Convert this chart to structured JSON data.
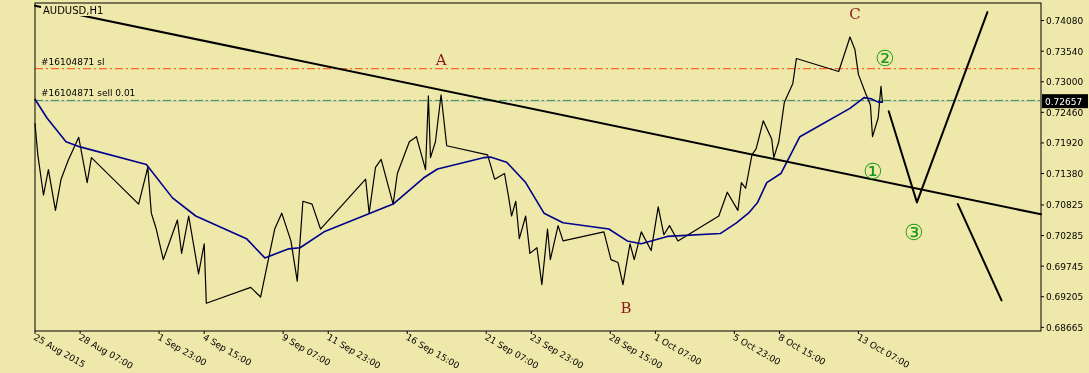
{
  "chart_data": {
    "type": "line",
    "title": "AUDUSD,H1",
    "xlim": [
      "2015-08-25T15:00",
      "2015-10-24T02:00"
    ],
    "ylim": [
      0.686,
      0.7439
    ],
    "xticks": [
      {
        "value": "2015-08-25T15:00",
        "label": "25 Aug 2015"
      },
      {
        "value": "2015-08-28T07:00",
        "label": "28 Aug 07:00"
      },
      {
        "value": "2015-09-01T23:00",
        "label": "1 Sep 23:00"
      },
      {
        "value": "2015-09-04T15:00",
        "label": "4 Sep 15:00"
      },
      {
        "value": "2015-09-09T07:00",
        "label": "9 Sep 07:00"
      },
      {
        "value": "2015-09-11T23:00",
        "label": "11 Sep 23:00"
      },
      {
        "value": "2015-09-16T15:00",
        "label": "16 Sep 15:00"
      },
      {
        "value": "2015-09-21T07:00",
        "label": "21 Sep 07:00"
      },
      {
        "value": "2015-09-23T23:00",
        "label": "23 Sep 23:00"
      },
      {
        "value": "2015-09-28T15:00",
        "label": "28 Sep 15:00"
      },
      {
        "value": "2015-10-01T07:00",
        "label": "1 Oct 07:00"
      },
      {
        "value": "2015-10-05T23:00",
        "label": "5 Oct 23:00"
      },
      {
        "value": "2015-10-08T15:00",
        "label": "8 Oct 15:00"
      },
      {
        "value": "2015-10-13T07:00",
        "label": "13 Oct 07:00"
      }
    ],
    "yticks": [
      {
        "value": 0.7408,
        "label": "0.74080"
      },
      {
        "value": 0.7354,
        "label": "0.73540"
      },
      {
        "value": 0.73,
        "label": "0.73000"
      },
      {
        "value": 0.7246,
        "label": "0.72460"
      },
      {
        "value": 0.7192,
        "label": "0.71920"
      },
      {
        "value": 0.7138,
        "label": "0.71380"
      },
      {
        "value": 0.70825,
        "label": "0.70825"
      },
      {
        "value": 0.70285,
        "label": "0.70285"
      },
      {
        "value": 0.69745,
        "label": "0.69745"
      },
      {
        "value": 0.69205,
        "label": "0.69205"
      },
      {
        "value": 0.68665,
        "label": "0.68665"
      }
    ],
    "grid": false,
    "marker": "none",
    "line_style": "solid",
    "series": [
      {
        "color": "#000000",
        "x": [
          "2015-08-25T15:00",
          "2015-08-25T19:00",
          "2015-08-26T03:00",
          "2015-08-26T10:00",
          "2015-08-26T20:00",
          "2015-08-27T04:00",
          "2015-08-27T14:00",
          "2015-08-28T05:00",
          "2015-08-28T17:00",
          "2015-08-28T23:00",
          "2015-08-31T18:00",
          "2015-09-01T07:00",
          "2015-09-01T12:00",
          "2015-09-01T19:00",
          "2015-09-02T05:00",
          "2015-09-03T01:00",
          "2015-09-03T07:00",
          "2015-09-03T17:00",
          "2015-09-04T07:00",
          "2015-09-04T15:00",
          "2015-09-04T18:00",
          "2015-09-07T09:00",
          "2015-09-07T23:00",
          "2015-09-08T19:00",
          "2015-09-09T05:00",
          "2015-09-09T18:00",
          "2015-09-10T03:00",
          "2015-09-10T11:00",
          "2015-09-11T00:00",
          "2015-09-11T12:00",
          "2015-09-14T04:00",
          "2015-09-14T09:00",
          "2015-09-14T18:00",
          "2015-09-15T02:00",
          "2015-09-15T19:00",
          "2015-09-16T01:00",
          "2015-09-16T18:00",
          "2015-09-17T04:00",
          "2015-09-17T17:00",
          "2015-09-17T21:00",
          "2015-09-18T00:00",
          "2015-09-18T07:00",
          "2015-09-18T15:00",
          "2015-09-18T23:00",
          "2015-09-21T09:00",
          "2015-09-21T19:00",
          "2015-09-22T09:00",
          "2015-09-22T15:00",
          "2015-09-22T19:00",
          "2015-09-23T01:00",
          "2015-09-23T06:00",
          "2015-09-23T15:00",
          "2015-09-23T21:00",
          "2015-09-24T07:00",
          "2015-09-24T14:00",
          "2015-09-24T22:00",
          "2015-09-25T02:00",
          "2015-09-25T13:00",
          "2015-09-25T20:00",
          "2015-09-28T06:00",
          "2015-09-28T16:00",
          "2015-09-29T02:00",
          "2015-09-29T09:00",
          "2015-09-29T19:00",
          "2015-09-30T01:00",
          "2015-09-30T11:00",
          "2015-10-01T01:00",
          "2015-10-01T11:00",
          "2015-10-01T19:00",
          "2015-10-02T03:00",
          "2015-10-02T15:00",
          "2015-10-05T01:00",
          "2015-10-05T13:00",
          "2015-10-06T04:00",
          "2015-10-06T09:00",
          "2015-10-06T15:00",
          "2015-10-07T00:00",
          "2015-10-07T06:00",
          "2015-10-07T16:00",
          "2015-10-08T04:00",
          "2015-10-08T07:00",
          "2015-10-08T14:00",
          "2015-10-08T22:00",
          "2015-10-09T10:00",
          "2015-10-09T15:00",
          "2015-10-12T03:00",
          "2015-10-12T16:00",
          "2015-10-12T19:00",
          "2015-10-13T02:00",
          "2015-10-13T07:00",
          "2015-10-13T17:00",
          "2015-10-14T00:00",
          "2015-10-14T03:00",
          "2015-10-14T11:00",
          "2015-10-14T15:00",
          "2015-10-14T17:00"
        ],
        "values": [
          0.7226,
          0.7171,
          0.71,
          0.7145,
          0.7073,
          0.7128,
          0.7161,
          0.7202,
          0.7122,
          0.7166,
          0.7084,
          0.7149,
          0.7068,
          0.704,
          0.6986,
          0.7056,
          0.6997,
          0.7063,
          0.6961,
          0.7014,
          0.6909,
          0.6937,
          0.692,
          0.704,
          0.7068,
          0.7019,
          0.6948,
          0.7089,
          0.7084,
          0.704,
          0.7128,
          0.7068,
          0.7149,
          0.7163,
          0.7084,
          0.7138,
          0.7194,
          0.7203,
          0.7145,
          0.7275,
          0.7166,
          0.7194,
          0.7277,
          0.7187,
          0.7171,
          0.7128,
          0.7138,
          0.7095,
          0.7063,
          0.7089,
          0.7023,
          0.7063,
          0.6997,
          0.7007,
          0.6942,
          0.704,
          0.6986,
          0.7046,
          0.7019,
          0.7035,
          0.6986,
          0.6981,
          0.6942,
          0.7014,
          0.6986,
          0.7035,
          0.7002,
          0.7079,
          0.703,
          0.7046,
          0.7019,
          0.7063,
          0.7105,
          0.7073,
          0.7122,
          0.7112,
          0.7171,
          0.7182,
          0.7231,
          0.7199,
          0.7166,
          0.7194,
          0.7264,
          0.7297,
          0.7341,
          0.7318,
          0.7367,
          0.7379,
          0.7357,
          0.7313,
          0.728,
          0.7259,
          0.7203,
          0.7236,
          0.7292,
          0.7264
        ]
      },
      {
        "color": "#00008b",
        "x": [
          "2015-08-25T15:00",
          "2015-08-26T08:00",
          "2015-08-27T11:00",
          "2015-08-28T07:00",
          "2015-09-01T05:00",
          "2015-09-02T18:00",
          "2015-09-04T03:00",
          "2015-09-07T03:00",
          "2015-09-08T05:00",
          "2015-09-09T15:00",
          "2015-09-10T07:00",
          "2015-09-11T17:00",
          "2015-09-15T19:00",
          "2015-09-17T14:00",
          "2015-09-18T10:00",
          "2015-09-21T03:00",
          "2015-09-21T13:00",
          "2015-09-22T12:00",
          "2015-09-23T15:00",
          "2015-09-24T17:00",
          "2015-09-25T20:00",
          "2015-09-28T13:00",
          "2015-09-29T15:00",
          "2015-09-30T11:00",
          "2015-10-02T00:00",
          "2015-10-05T03:00",
          "2015-10-06T02:00",
          "2015-10-06T19:00",
          "2015-10-07T08:00",
          "2015-10-07T21:00",
          "2015-10-08T17:00",
          "2015-10-09T20:00",
          "2015-10-12T19:00",
          "2015-10-13T15:00",
          "2015-10-14T01:00",
          "2015-10-14T11:00",
          "2015-10-14T17:00"
        ],
        "values": [
          0.7269,
          0.7236,
          0.7194,
          0.7185,
          0.7154,
          0.7095,
          0.7063,
          0.7023,
          0.6989,
          0.7005,
          0.7007,
          0.7035,
          0.7084,
          0.713,
          0.7146,
          0.7166,
          0.7167,
          0.7158,
          0.7122,
          0.7068,
          0.7051,
          0.704,
          0.7019,
          0.7014,
          0.7027,
          0.7032,
          0.7051,
          0.7068,
          0.7087,
          0.7122,
          0.7138,
          0.7203,
          0.7253,
          0.7272,
          0.727,
          0.7264,
          0.7264
        ]
      },
      {
        "color": "#000000",
        "x": [
          "2015-08-25T15:00",
          "2015-10-24T02:00"
        ],
        "values": [
          0.7434,
          0.7066
        ]
      },
      {
        "color": "#000000",
        "x": [
          "2015-10-15T02:00",
          "2015-10-16T18:00",
          "2015-10-20T22:00"
        ],
        "values": [
          0.7248,
          0.7087,
          0.7423
        ]
      },
      {
        "color": "#000000",
        "x": [
          "2015-10-19T04:00",
          "2015-10-21T18:00"
        ],
        "values": [
          0.7084,
          0.6914
        ]
      }
    ],
    "ref_lines": [
      {
        "axis": "y",
        "value": 0.7323,
        "label": "#16104871 sl",
        "color": "#ff4500",
        "line_style": "dashed"
      },
      {
        "axis": "y",
        "value": 0.7267,
        "label": "#16104871 sell 0.01",
        "color": "#008000",
        "line_style": "dashed"
      },
      {
        "axis": "y",
        "value": 0.72657,
        "label": "0.72657",
        "color": "#c0c0c0",
        "line_style": "solid"
      }
    ],
    "annotations": [
      {
        "text": "A",
        "x": "2015-09-18T15:00",
        "y": 0.7277
      },
      {
        "text": "B",
        "x": "2015-09-29T09:00",
        "y": 0.6942
      },
      {
        "text": "C",
        "x": "2015-10-12T19:00",
        "y": 0.7379
      },
      {
        "text": "①",
        "x": "2015-10-14T03:00",
        "y": 0.7203
      },
      {
        "text": "②",
        "x": "2015-10-14T15:00",
        "y": 0.7292
      },
      {
        "text": "③",
        "x": "2015-10-16T18:00",
        "y": 0.7087
      }
    ]
  }
}
